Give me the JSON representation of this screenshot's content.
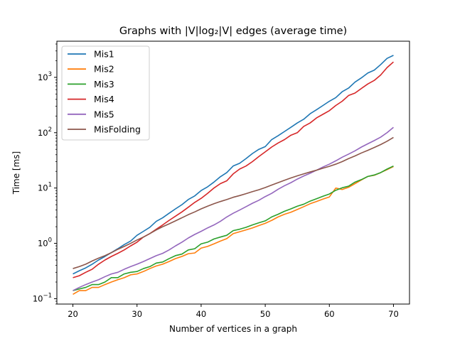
{
  "chart_data": {
    "type": "line",
    "title": "Graphs with |V|log₂|V| edges (average time)",
    "xlabel": "Number of vertices in a graph",
    "ylabel": "Time [ms]",
    "xscale": "linear",
    "yscale": "log",
    "xlim": [
      17.5,
      72.5
    ],
    "ylim": [
      0.08,
      4500
    ],
    "x_ticks": [
      20,
      30,
      40,
      50,
      60,
      70
    ],
    "y_ticks": [
      {
        "value": 0.1,
        "base": "10",
        "exp": "−1"
      },
      {
        "value": 1,
        "base": "10",
        "exp": "0"
      },
      {
        "value": 10,
        "base": "10",
        "exp": "1"
      },
      {
        "value": 100,
        "base": "10",
        "exp": "2"
      },
      {
        "value": 1000,
        "base": "10",
        "exp": "3"
      }
    ],
    "grid": false,
    "legend": "top-left",
    "x": [
      20,
      21,
      22,
      23,
      24,
      25,
      26,
      27,
      28,
      29,
      30,
      31,
      32,
      33,
      34,
      35,
      36,
      37,
      38,
      39,
      40,
      41,
      42,
      43,
      44,
      45,
      46,
      47,
      48,
      49,
      50,
      51,
      52,
      53,
      54,
      55,
      56,
      57,
      58,
      59,
      60,
      61,
      62,
      63,
      64,
      65,
      66,
      67,
      68,
      69,
      70
    ],
    "series": [
      {
        "name": "Mis1",
        "color": "#1f77b4",
        "values": [
          0.28,
          0.32,
          0.36,
          0.42,
          0.5,
          0.58,
          0.68,
          0.8,
          0.95,
          1.1,
          1.4,
          1.65,
          1.95,
          2.5,
          2.9,
          3.5,
          4.2,
          5.0,
          6.2,
          7.2,
          9.0,
          10.5,
          12.8,
          16.0,
          19.0,
          25.0,
          28.0,
          34.0,
          42.0,
          50.0,
          56.0,
          75.0,
          88.0,
          105.0,
          125.0,
          150.0,
          175.0,
          220.0,
          260.0,
          310.0,
          370.0,
          430.0,
          550.0,
          640.0,
          820.0,
          980.0,
          1200.0,
          1350.0,
          1700.0,
          2200.0,
          2500.0
        ]
      },
      {
        "name": "Mis2",
        "color": "#ff7f0e",
        "values": [
          0.12,
          0.14,
          0.14,
          0.16,
          0.16,
          0.18,
          0.2,
          0.22,
          0.24,
          0.27,
          0.28,
          0.31,
          0.35,
          0.39,
          0.42,
          0.47,
          0.53,
          0.58,
          0.65,
          0.67,
          0.82,
          0.88,
          0.98,
          1.1,
          1.22,
          1.5,
          1.62,
          1.75,
          1.9,
          2.1,
          2.3,
          2.6,
          3.0,
          3.35,
          3.65,
          4.1,
          4.6,
          5.2,
          5.7,
          6.3,
          6.9,
          10.0,
          9.4,
          10.3,
          12.0,
          14.0,
          16.2,
          17.0,
          19.0,
          21.5,
          24.5
        ]
      },
      {
        "name": "Mis3",
        "color": "#2ca02c",
        "values": [
          0.14,
          0.15,
          0.16,
          0.18,
          0.18,
          0.2,
          0.24,
          0.24,
          0.28,
          0.3,
          0.31,
          0.35,
          0.38,
          0.44,
          0.46,
          0.53,
          0.6,
          0.64,
          0.76,
          0.8,
          0.98,
          1.05,
          1.2,
          1.3,
          1.4,
          1.7,
          1.8,
          1.95,
          2.15,
          2.35,
          2.55,
          3.0,
          3.35,
          3.8,
          4.2,
          4.7,
          5.1,
          5.8,
          6.4,
          7.1,
          7.8,
          9.1,
          10.1,
          10.8,
          12.8,
          14.2,
          16.2,
          17.2,
          19.0,
          22.0,
          25.0
        ]
      },
      {
        "name": "Mis4",
        "color": "#d62728",
        "values": [
          0.24,
          0.26,
          0.3,
          0.34,
          0.42,
          0.5,
          0.58,
          0.66,
          0.76,
          0.9,
          1.05,
          1.3,
          1.5,
          1.8,
          2.15,
          2.6,
          3.1,
          3.7,
          4.5,
          5.5,
          6.5,
          8.0,
          10.0,
          12.0,
          13.5,
          18.0,
          22.0,
          25.0,
          30.0,
          37.0,
          45.0,
          55.0,
          65.0,
          75.0,
          90.0,
          100.0,
          130.0,
          150.0,
          185.0,
          215.0,
          250.0,
          310.0,
          370.0,
          470.0,
          520.0,
          630.0,
          760.0,
          880.0,
          1100.0,
          1500.0,
          1900.0
        ]
      },
      {
        "name": "Mis5",
        "color": "#9467bd",
        "values": [
          0.14,
          0.16,
          0.18,
          0.2,
          0.22,
          0.25,
          0.28,
          0.3,
          0.34,
          0.38,
          0.42,
          0.47,
          0.53,
          0.6,
          0.66,
          0.76,
          0.9,
          1.05,
          1.25,
          1.45,
          1.65,
          1.9,
          2.15,
          2.5,
          3.0,
          3.5,
          4.0,
          4.6,
          5.3,
          6.0,
          7.0,
          8.0,
          9.5,
          11.0,
          12.5,
          14.5,
          16.5,
          18.5,
          21.0,
          24.0,
          27.0,
          31.0,
          36.0,
          41.0,
          47.0,
          55.0,
          63.0,
          72.0,
          83.0,
          100.0,
          125.0
        ]
      },
      {
        "name": "MisFolding",
        "color": "#8c564b",
        "values": [
          0.35,
          0.38,
          0.42,
          0.48,
          0.54,
          0.6,
          0.68,
          0.78,
          0.88,
          1.0,
          1.15,
          1.3,
          1.5,
          1.75,
          2.0,
          2.25,
          2.55,
          2.9,
          3.3,
          3.7,
          4.2,
          4.7,
          5.2,
          5.7,
          6.2,
          6.8,
          7.3,
          7.9,
          8.6,
          9.3,
          10.2,
          11.3,
          12.5,
          13.8,
          15.2,
          16.6,
          18.0,
          19.5,
          21.0,
          22.8,
          24.7,
          27.0,
          30.0,
          34.0,
          38.0,
          43.0,
          48.0,
          54.0,
          61.0,
          70.0,
          82.0
        ]
      }
    ]
  }
}
